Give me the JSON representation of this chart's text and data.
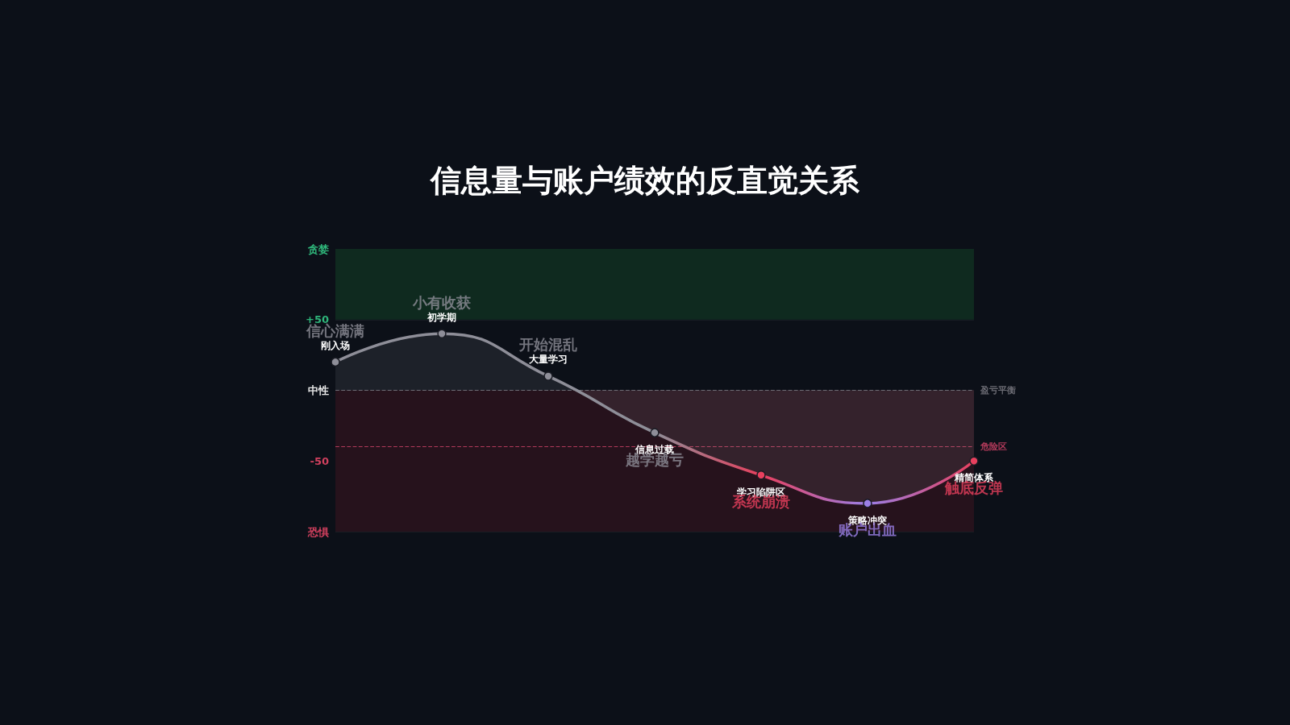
{
  "chart_data": {
    "type": "area",
    "title": "信息量与账户绩效的反直觉关系",
    "categories": [
      "刚入场",
      "初学期",
      "大量学习",
      "信息过载",
      "学习陷阱区",
      "策略冲突",
      "精简体系"
    ],
    "series": [
      {
        "color": "#9a9aa6",
        "colors": [
          "#8e8e98",
          "#8e8e98",
          "#8e8e98",
          "#8e8e98",
          "#e8405e",
          "#9b7fe6",
          "#e8405e"
        ],
        "values": [
          20,
          40,
          10,
          -30,
          -60,
          -80,
          -50
        ]
      }
    ],
    "ylim": [
      -100,
      100
    ],
    "yticks": [
      {
        "value": -100,
        "label": "恐惧"
      },
      -50,
      {
        "value": 0,
        "label": "中性"
      },
      {
        "value": 50,
        "label": "+50"
      },
      {
        "value": 100,
        "label": "贪婪"
      }
    ],
    "grid": "y",
    "tick_labels": "y",
    "marker": "circle",
    "line_style": "solid",
    "ref_lines": [
      {
        "axis": "y",
        "value": 0,
        "label": "盈亏平衡",
        "color": "#6a6a72",
        "line_style": "dashed"
      },
      {
        "axis": "y",
        "value": -40,
        "label": "危险区",
        "color": "#b03a5a",
        "line_style": "dashed"
      }
    ],
    "bands": [
      {
        "axis": "y",
        "from": 50,
        "to": 100,
        "color": "#0f2a1f"
      },
      {
        "axis": "y",
        "from": -100,
        "to": 0,
        "color": "#26121c"
      }
    ],
    "annotations": [
      {
        "text": "信心满满",
        "x": "刚入场",
        "y": 20
      },
      {
        "text": "小有收获",
        "x": "初学期",
        "y": 40
      },
      {
        "text": "开始混乱",
        "x": "大量学习",
        "y": 10
      },
      {
        "text": "越学越亏",
        "x": "信息过载",
        "y": -30
      },
      {
        "text": "系统崩溃",
        "x": "学习陷阱区",
        "y": -60
      },
      {
        "text": "账户出血",
        "x": "策略冲突",
        "y": -80
      },
      {
        "text": "触底反弹",
        "x": "精简体系",
        "y": -50
      }
    ]
  }
}
